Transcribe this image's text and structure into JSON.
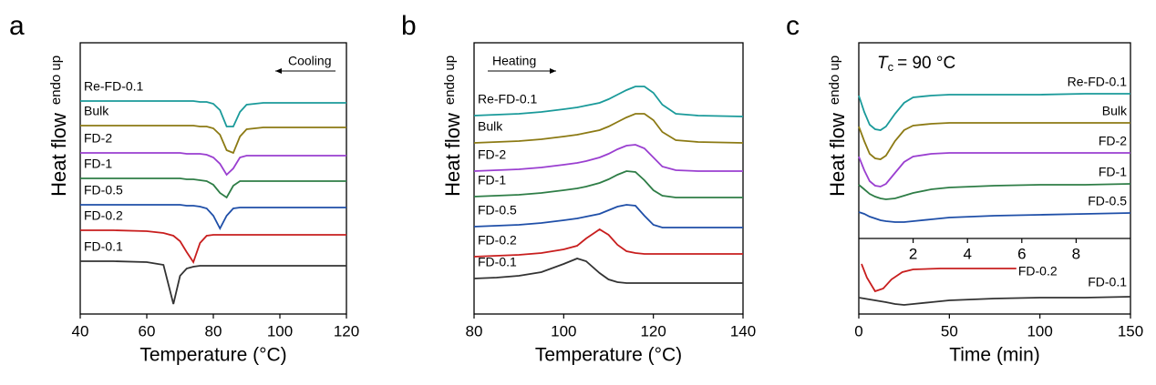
{
  "chart_data": [
    {
      "type": "line",
      "panel_label": "a",
      "xlabel": "Temperature (°C)",
      "ylabel": "Heat flow",
      "y_note": "endo up",
      "annotation": "Cooling",
      "xlim": [
        40,
        120
      ],
      "xticks": [
        40,
        60,
        80,
        100,
        120
      ],
      "ylim": [
        0,
        298
      ],
      "x": [
        40,
        50,
        60,
        65,
        68,
        70,
        72,
        74,
        76,
        78,
        80,
        82,
        84,
        86,
        88,
        90,
        95,
        100,
        110,
        120
      ],
      "series": [
        {
          "name": "Re-FD-0.1",
          "color": "#1a9a9a",
          "values": [
            234,
            234,
            234,
            234,
            234,
            234,
            234,
            234,
            233,
            233,
            231,
            224,
            206,
            206,
            222,
            230,
            232,
            232,
            232,
            232
          ]
        },
        {
          "name": "Bulk",
          "color": "#8c7a14",
          "values": [
            207,
            207,
            207,
            207,
            207,
            207,
            207,
            207,
            206,
            206,
            204,
            197,
            180,
            177,
            195,
            203,
            205,
            205,
            205,
            205
          ]
        },
        {
          "name": "FD-2",
          "color": "#9a3fd0",
          "values": [
            177,
            177,
            177,
            177,
            177,
            177,
            176,
            176,
            176,
            175,
            172,
            165,
            153,
            160,
            172,
            174,
            174,
            174,
            174,
            174
          ]
        },
        {
          "name": "FD-1",
          "color": "#2e7d46",
          "values": [
            149,
            149,
            149,
            149,
            149,
            149,
            148,
            148,
            147,
            146,
            142,
            133,
            128,
            141,
            146,
            146,
            146,
            146,
            146,
            146
          ]
        },
        {
          "name": "FD-0.5",
          "color": "#1f4fa8",
          "values": [
            120,
            120,
            120,
            120,
            120,
            120,
            119,
            119,
            118,
            116,
            108,
            94,
            108,
            116,
            117,
            117,
            117,
            117,
            117,
            117
          ]
        },
        {
          "name": "FD-0.2",
          "color": "#c81e1e",
          "values": [
            92,
            92,
            91,
            89,
            86,
            80,
            68,
            57,
            78,
            86,
            87,
            87,
            87,
            87,
            87,
            87,
            87,
            87,
            87,
            87
          ]
        },
        {
          "name": "FD-0.1",
          "color": "#333333",
          "values": [
            58,
            58,
            57,
            54,
            11,
            42,
            50,
            52,
            53,
            53,
            53,
            53,
            53,
            53,
            53,
            53,
            53,
            53,
            53,
            53
          ]
        }
      ]
    },
    {
      "type": "line",
      "panel_label": "b",
      "xlabel": "Temperature (°C)",
      "ylabel": "Heat flow",
      "y_note": "endo up",
      "annotation": "Heating",
      "xlim": [
        80,
        140
      ],
      "xticks": [
        80,
        100,
        120,
        140
      ],
      "ylim": [
        0,
        298
      ],
      "x": [
        80,
        85,
        90,
        95,
        100,
        103,
        105,
        108,
        110,
        112,
        114,
        116,
        118,
        120,
        122,
        125,
        130,
        140
      ],
      "series": [
        {
          "name": "Re-FD-0.1",
          "color": "#1a9a9a",
          "values": [
            218,
            219,
            220,
            222,
            225,
            227,
            229,
            232,
            236,
            241,
            246,
            250,
            250,
            243,
            230,
            220,
            218,
            217
          ]
        },
        {
          "name": "Bulk",
          "color": "#8c7a14",
          "values": [
            188,
            189,
            190,
            192,
            195,
            197,
            199,
            202,
            206,
            211,
            216,
            220,
            220,
            213,
            200,
            191,
            189,
            188
          ]
        },
        {
          "name": "FD-2",
          "color": "#9a3fd0",
          "values": [
            157,
            158,
            159,
            161,
            164,
            166,
            168,
            172,
            176,
            181,
            185,
            186,
            182,
            172,
            162,
            158,
            157,
            157
          ]
        },
        {
          "name": "FD-1",
          "color": "#2e7d46",
          "values": [
            129,
            130,
            131,
            133,
            136,
            138,
            140,
            144,
            148,
            153,
            157,
            156,
            147,
            136,
            130,
            128,
            128,
            128
          ]
        },
        {
          "name": "FD-0.5",
          "color": "#1f4fa8",
          "values": [
            96,
            97,
            98,
            100,
            103,
            105,
            107,
            110,
            114,
            118,
            120,
            119,
            108,
            98,
            95,
            95,
            95,
            95
          ]
        },
        {
          "name": "FD-0.2",
          "color": "#c81e1e",
          "values": [
            63,
            64,
            65,
            67,
            71,
            75,
            83,
            93,
            87,
            76,
            69,
            67,
            66,
            66,
            66,
            66,
            66,
            66
          ]
        },
        {
          "name": "FD-0.1",
          "color": "#333333",
          "values": [
            39,
            40,
            42,
            46,
            55,
            61,
            58,
            45,
            38,
            35,
            34,
            34,
            34,
            34,
            34,
            34,
            34,
            34
          ]
        }
      ]
    },
    {
      "type": "line",
      "panel_label": "c",
      "xlabel": "Time (min)",
      "ylabel": "Heat flow",
      "y_note": "endo up",
      "annotation": {
        "symbol": "T",
        "subscript": "c",
        "text": "= 90 °C"
      },
      "xlim": [
        0,
        150
      ],
      "xticks": [
        0,
        50,
        100,
        150
      ],
      "x2lim": [
        0,
        10
      ],
      "x2ticks": [
        2,
        4,
        6,
        8
      ],
      "ylim": [
        0,
        298
      ],
      "x": [
        0,
        3,
        6,
        9,
        12,
        15,
        20,
        25,
        30,
        40,
        50,
        75,
        100,
        125,
        150
      ],
      "series": [
        {
          "name": "Re-FD-0.1",
          "color": "#1a9a9a",
          "values": [
            240,
            222,
            208,
            203,
            202,
            206,
            220,
            232,
            238,
            240,
            241,
            241,
            241,
            242,
            242
          ]
        },
        {
          "name": "Bulk",
          "color": "#8c7a14",
          "values": [
            206,
            190,
            176,
            171,
            170,
            174,
            190,
            202,
            207,
            209,
            210,
            210,
            210,
            210,
            210
          ]
        },
        {
          "name": "FD-2",
          "color": "#9a3fd0",
          "values": [
            173,
            158,
            146,
            141,
            140,
            143,
            155,
            167,
            173,
            176,
            177,
            177,
            177,
            177,
            177
          ]
        },
        {
          "name": "FD-1",
          "color": "#2e7d46",
          "values": [
            142,
            137,
            132,
            129,
            127,
            126,
            127,
            130,
            133,
            137,
            139,
            141,
            142,
            142,
            143
          ]
        },
        {
          "name": "FD-0.5",
          "color": "#1f4fa8",
          "values": [
            112,
            110,
            107,
            105,
            103,
            102,
            101,
            101,
            102,
            104,
            106,
            108,
            109,
            110,
            111
          ]
        },
        {
          "name": "FD-0.2",
          "color": "#c81e1e",
          "axis": "x2",
          "x": [
            0.1,
            0.3,
            0.6,
            0.9,
            1.2,
            1.6,
            2,
            3,
            4,
            5,
            5.8
          ],
          "values": [
            55,
            40,
            25,
            28,
            38,
            46,
            49,
            50,
            50,
            50,
            50
          ]
        },
        {
          "name": "FD-0.1",
          "color": "#333333",
          "values": [
            18,
            17,
            16,
            15,
            14,
            13,
            11,
            10,
            11,
            13,
            15,
            17,
            18,
            18,
            19
          ]
        }
      ]
    }
  ]
}
